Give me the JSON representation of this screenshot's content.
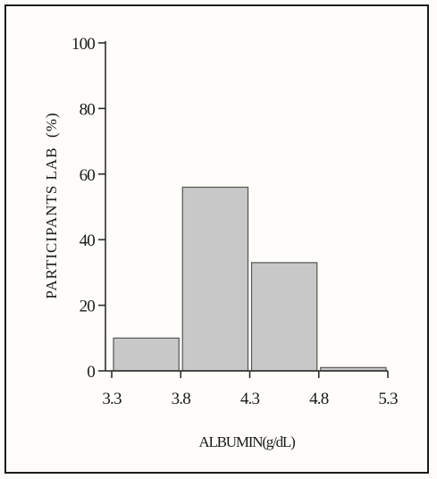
{
  "chart_data": {
    "type": "bar",
    "xlabel": "ALBUMIN(g/dL)",
    "ylabel": "PARTICIPANTS LAB  (%)",
    "x_bin_edges": [
      3.3,
      3.8,
      4.3,
      4.8,
      5.3
    ],
    "x_tick_labels": [
      "3.3",
      "3.8",
      "4.3",
      "4.8",
      "5.3"
    ],
    "categories": [
      "3.3-3.8",
      "3.8-4.3",
      "4.3-4.8",
      "4.8-5.3"
    ],
    "values": [
      10,
      56,
      33,
      1
    ],
    "ylim": [
      0,
      100
    ],
    "y_ticks": [
      0,
      20,
      40,
      60,
      80,
      100
    ],
    "y_tick_labels": [
      "0",
      "20",
      "40",
      "60",
      "80",
      "100"
    ],
    "grid": false,
    "bar_color": "#c8c8c8",
    "bar_edge_color": "#555555"
  }
}
